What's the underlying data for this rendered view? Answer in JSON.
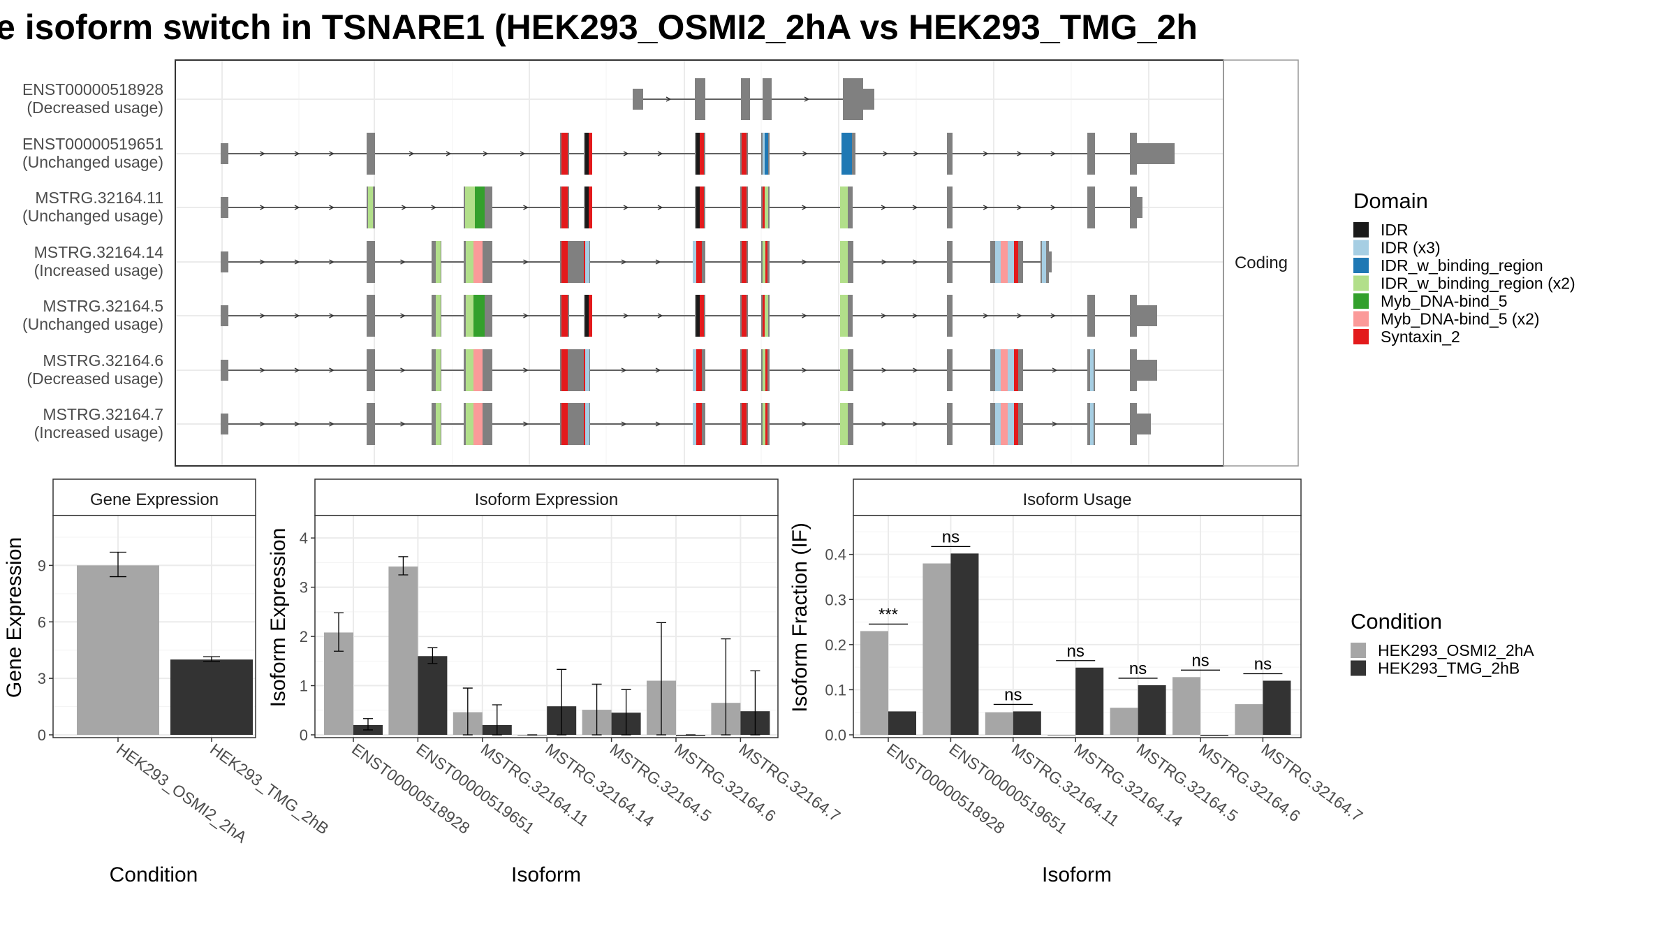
{
  "title": "e isoform switch in TSNARE1 (HEK293_OSMI2_2hA vs HEK293_TMG_2h",
  "structure": {
    "facet_label": "Coding",
    "transcripts": [
      {
        "id": "ENST00000518928",
        "usage": "(Decreased usage)"
      },
      {
        "id": "ENST00000519651",
        "usage": "(Unchanged usage)"
      },
      {
        "id": "MSTRG.32164.11",
        "usage": "(Unchanged usage)"
      },
      {
        "id": "MSTRG.32164.14",
        "usage": "(Increased usage)"
      },
      {
        "id": "MSTRG.32164.5",
        "usage": "(Unchanged usage)"
      },
      {
        "id": "MSTRG.32164.6",
        "usage": "(Decreased usage)"
      },
      {
        "id": "MSTRG.32164.7",
        "usage": "(Increased usage)"
      }
    ]
  },
  "domain_legend": {
    "title": "Domain",
    "items": [
      {
        "label": "IDR",
        "color": "#1a1a1a"
      },
      {
        "label": "IDR (x3)",
        "color": "#a6cee3"
      },
      {
        "label": "IDR_w_binding_region",
        "color": "#1f78b4"
      },
      {
        "label": "IDR_w_binding_region (x2)",
        "color": "#b2df8a"
      },
      {
        "label": "Myb_DNA-bind_5",
        "color": "#33a02c"
      },
      {
        "label": "Myb_DNA-bind_5 (x2)",
        "color": "#fb9a99"
      },
      {
        "label": "Syntaxin_2",
        "color": "#e31a1c"
      }
    ]
  },
  "condition_legend": {
    "title": "Condition",
    "items": [
      {
        "label": "HEK293_OSMI2_2hA",
        "color": "#a6a6a6"
      },
      {
        "label": "HEK293_TMG_2hB",
        "color": "#333333"
      }
    ]
  },
  "chart_data": [
    {
      "type": "bar",
      "title": "Gene Expression",
      "xlabel": "Condition",
      "ylabel": "Gene Expression",
      "ylim": [
        0,
        11.5
      ],
      "yticks": [
        0,
        3,
        6,
        9
      ],
      "categories": [
        "HEK293_OSMI2_2hA",
        "HEK293_TMG_2hB"
      ],
      "values": [
        9.0,
        4.0
      ],
      "errors": [
        [
          8.4,
          9.7
        ],
        [
          3.9,
          4.15
        ]
      ]
    },
    {
      "type": "bar",
      "title": "Isoform Expression",
      "xlabel": "Isoform",
      "ylabel": "Isoform Expression",
      "ylim": [
        0,
        4.4
      ],
      "yticks": [
        0,
        1,
        2,
        3,
        4
      ],
      "categories": [
        "ENST00000518928",
        "ENST00000519651",
        "MSTRG.32164.11",
        "MSTRG.32164.14",
        "MSTRG.32164.5",
        "MSTRG.32164.6",
        "MSTRG.32164.7"
      ],
      "series": [
        {
          "name": "HEK293_OSMI2_2hA",
          "values": [
            2.08,
            3.42,
            0.46,
            0.0,
            0.51,
            1.1,
            0.65
          ],
          "errors": [
            [
              1.7,
              2.48
            ],
            [
              3.25,
              3.62
            ],
            [
              0.0,
              0.95
            ],
            [
              0.0,
              0.0
            ],
            [
              0.0,
              1.03
            ],
            [
              0.0,
              2.28
            ],
            [
              0.0,
              1.95
            ]
          ]
        },
        {
          "name": "HEK293_TMG_2hB",
          "values": [
            0.2,
            1.6,
            0.2,
            0.58,
            0.45,
            0.0,
            0.48
          ],
          "errors": [
            [
              0.1,
              0.33
            ],
            [
              1.45,
              1.77
            ],
            [
              0.0,
              0.61
            ],
            [
              0.0,
              1.33
            ],
            [
              0.0,
              0.92
            ],
            [
              0.0,
              0.0
            ],
            [
              0.0,
              1.3
            ]
          ]
        }
      ]
    },
    {
      "type": "bar",
      "title": "Isoform Usage",
      "xlabel": "Isoform",
      "ylabel": "Isoform Fraction (IF)",
      "ylim": [
        0,
        0.48
      ],
      "yticks": [
        0.0,
        0.1,
        0.2,
        0.3,
        0.4
      ],
      "categories": [
        "ENST00000518928",
        "ENST00000519651",
        "MSTRG.32164.11",
        "MSTRG.32164.14",
        "MSTRG.32164.5",
        "MSTRG.32164.6",
        "MSTRG.32164.7"
      ],
      "series": [
        {
          "name": "HEK293_OSMI2_2hA",
          "values": [
            0.23,
            0.38,
            0.05,
            0.0,
            0.06,
            0.128,
            0.068
          ]
        },
        {
          "name": "HEK293_TMG_2hB",
          "values": [
            0.052,
            0.402,
            0.052,
            0.149,
            0.11,
            0.0,
            0.12
          ]
        }
      ],
      "significance": [
        "***",
        "ns",
        "ns",
        "ns",
        "ns",
        "ns",
        "ns"
      ]
    }
  ]
}
